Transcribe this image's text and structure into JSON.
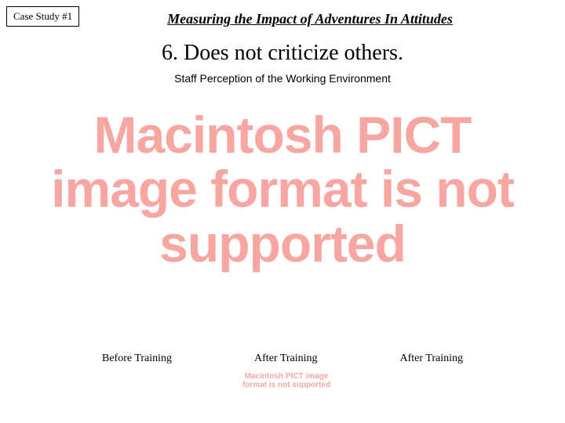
{
  "caseStudy": {
    "label": "Case Study #1"
  },
  "title": "Measuring the Impact of Adventures In Attitudes",
  "subtitle": "6. Does not criticize others.",
  "caption": "Staff Perception of the Working Environment",
  "errorMessage": {
    "large": "Macintosh PICT image format is not supported",
    "small": "Macintosh PICT image format is not supported",
    "color": "#f7a6a1"
  },
  "labels": [
    "Before Training",
    "After Training",
    "After Training"
  ]
}
